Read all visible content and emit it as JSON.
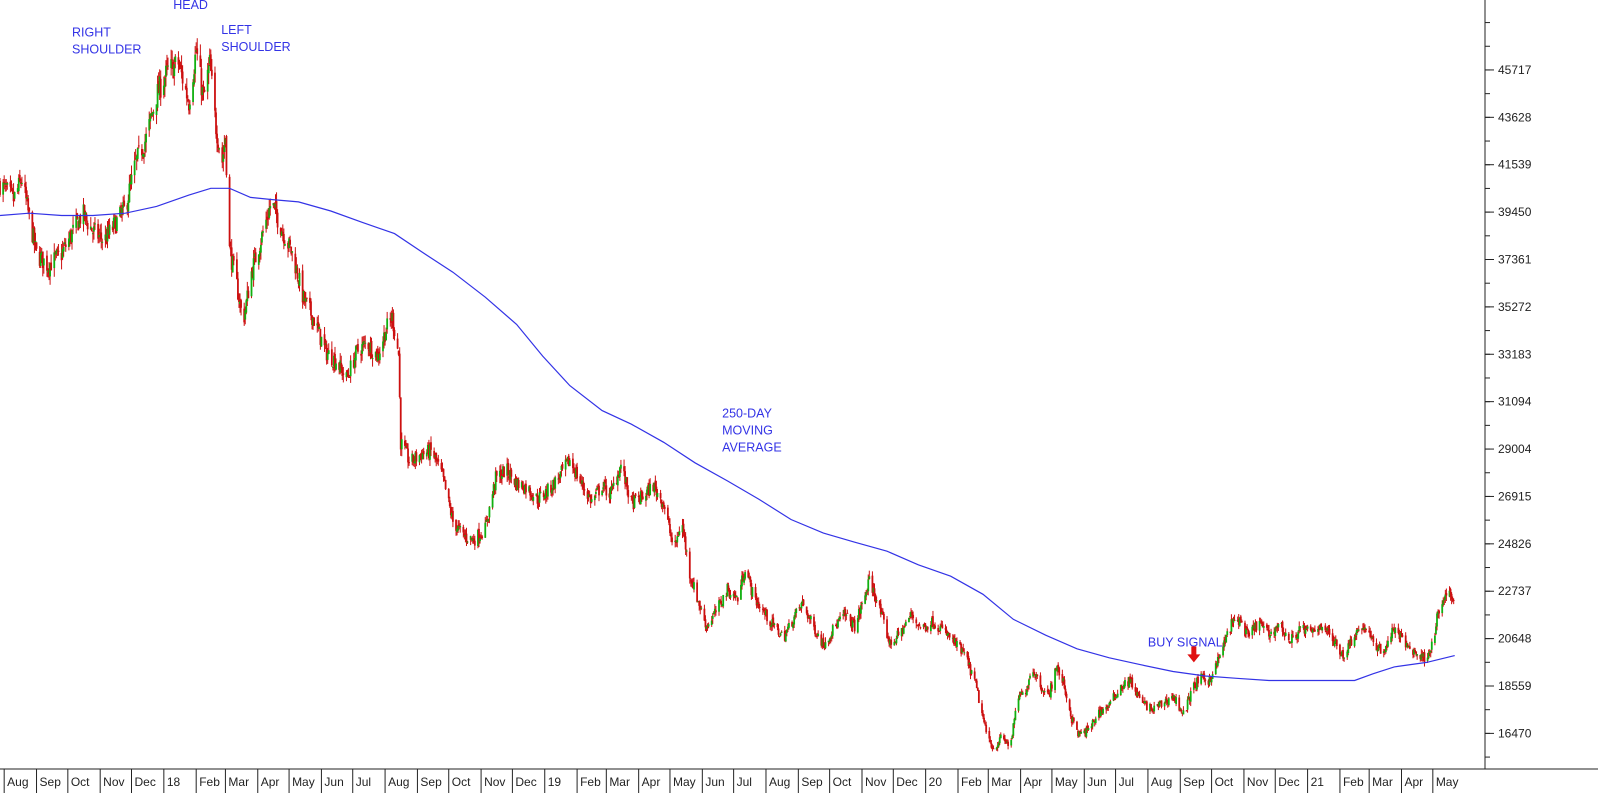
{
  "chart_data": {
    "type": "line",
    "title": "",
    "xlabel": "",
    "ylabel": "",
    "y_ticks": [
      16470,
      18559,
      20648,
      22737,
      24826,
      26915,
      29004,
      31094,
      33183,
      35272,
      37361,
      39450,
      41539,
      43628,
      45717
    ],
    "ylim": [
      14900,
      48800
    ],
    "grid": false,
    "legend": "none",
    "x_ticks": [
      {
        "label": "Aug",
        "date": "2017-08"
      },
      {
        "label": "Sep",
        "date": "2017-09"
      },
      {
        "label": "Oct",
        "date": "2017-10"
      },
      {
        "label": "Nov",
        "date": "2017-11"
      },
      {
        "label": "Dec",
        "date": "2017-12"
      },
      {
        "label": "18",
        "date": "2018-01"
      },
      {
        "label": "Feb",
        "date": "2018-02"
      },
      {
        "label": "Mar",
        "date": "2018-03"
      },
      {
        "label": "Apr",
        "date": "2018-04"
      },
      {
        "label": "May",
        "date": "2018-05"
      },
      {
        "label": "Jun",
        "date": "2018-06"
      },
      {
        "label": "Jul",
        "date": "2018-07"
      },
      {
        "label": "Aug",
        "date": "2018-08"
      },
      {
        "label": "Sep",
        "date": "2018-09"
      },
      {
        "label": "Oct",
        "date": "2018-10"
      },
      {
        "label": "Nov",
        "date": "2018-11"
      },
      {
        "label": "Dec",
        "date": "2018-12"
      },
      {
        "label": "19",
        "date": "2019-01"
      },
      {
        "label": "Feb",
        "date": "2019-02"
      },
      {
        "label": "Mar",
        "date": "2019-03"
      },
      {
        "label": "Apr",
        "date": "2019-04"
      },
      {
        "label": "May",
        "date": "2019-05"
      },
      {
        "label": "Jun",
        "date": "2019-06"
      },
      {
        "label": "Jul",
        "date": "2019-07"
      },
      {
        "label": "Aug",
        "date": "2019-08"
      },
      {
        "label": "Sep",
        "date": "2019-09"
      },
      {
        "label": "Oct",
        "date": "2019-10"
      },
      {
        "label": "Nov",
        "date": "2019-11"
      },
      {
        "label": "Dec",
        "date": "2019-12"
      },
      {
        "label": "20",
        "date": "2020-01"
      },
      {
        "label": "Feb",
        "date": "2020-02"
      },
      {
        "label": "Mar",
        "date": "2020-03"
      },
      {
        "label": "Apr",
        "date": "2020-04"
      },
      {
        "label": "May",
        "date": "2020-05"
      },
      {
        "label": "Jun",
        "date": "2020-06"
      },
      {
        "label": "Jul",
        "date": "2020-07"
      },
      {
        "label": "Aug",
        "date": "2020-08"
      },
      {
        "label": "Sep",
        "date": "2020-09"
      },
      {
        "label": "Oct",
        "date": "2020-10"
      },
      {
        "label": "Nov",
        "date": "2020-11"
      },
      {
        "label": "Dec",
        "date": "2020-12"
      },
      {
        "label": "21",
        "date": "2021-01"
      },
      {
        "label": "Feb",
        "date": "2021-02"
      },
      {
        "label": "Mar",
        "date": "2021-03"
      },
      {
        "label": "Apr",
        "date": "2021-04"
      },
      {
        "label": "May",
        "date": "2021-05"
      }
    ],
    "xlim": [
      "2017-07-28",
      "2021-06-20"
    ],
    "price_path": [
      [
        "2017-07-28",
        40700
      ],
      [
        "2017-08-10",
        40000
      ],
      [
        "2017-08-18",
        40900
      ],
      [
        "2017-08-25",
        39200
      ],
      [
        "2017-09-01",
        37600
      ],
      [
        "2017-09-12",
        37100
      ],
      [
        "2017-09-25",
        37600
      ],
      [
        "2017-10-05",
        38500
      ],
      [
        "2017-10-15",
        39400
      ],
      [
        "2017-10-25",
        38600
      ],
      [
        "2017-11-05",
        38200
      ],
      [
        "2017-11-15",
        38900
      ],
      [
        "2017-11-25",
        39600
      ],
      [
        "2017-12-05",
        41600
      ],
      [
        "2017-12-15",
        42700
      ],
      [
        "2017-12-25",
        44600
      ],
      [
        "2018-01-05",
        45700
      ],
      [
        "2018-01-15",
        46000
      ],
      [
        "2018-01-25",
        44300
      ],
      [
        "2018-02-01",
        46600
      ],
      [
        "2018-02-08",
        44400
      ],
      [
        "2018-02-14",
        46000
      ],
      [
        "2018-02-20",
        43200
      ],
      [
        "2018-02-26",
        41700
      ],
      [
        "2018-03-01",
        42800
      ],
      [
        "2018-03-05",
        37800
      ],
      [
        "2018-03-12",
        36200
      ],
      [
        "2018-03-18",
        34600
      ],
      [
        "2018-03-26",
        36800
      ],
      [
        "2018-04-05",
        38400
      ],
      [
        "2018-04-14",
        39900
      ],
      [
        "2018-04-25",
        38600
      ],
      [
        "2018-05-05",
        37500
      ],
      [
        "2018-05-15",
        35600
      ],
      [
        "2018-05-25",
        34700
      ],
      [
        "2018-06-05",
        33300
      ],
      [
        "2018-06-15",
        32900
      ],
      [
        "2018-06-25",
        32100
      ],
      [
        "2018-07-05",
        33300
      ],
      [
        "2018-07-15",
        33700
      ],
      [
        "2018-07-25",
        33100
      ],
      [
        "2018-08-02",
        34300
      ],
      [
        "2018-08-08",
        34800
      ],
      [
        "2018-08-14",
        33200
      ],
      [
        "2018-08-16",
        29300
      ],
      [
        "2018-08-25",
        28400
      ],
      [
        "2018-09-05",
        28800
      ],
      [
        "2018-09-15",
        28900
      ],
      [
        "2018-09-25",
        27800
      ],
      [
        "2018-10-05",
        25800
      ],
      [
        "2018-10-15",
        25200
      ],
      [
        "2018-10-25",
        25000
      ],
      [
        "2018-11-05",
        25500
      ],
      [
        "2018-11-15",
        27700
      ],
      [
        "2018-11-25",
        28100
      ],
      [
        "2018-12-05",
        27500
      ],
      [
        "2018-12-15",
        27300
      ],
      [
        "2018-12-25",
        26800
      ],
      [
        "2019-01-05",
        27200
      ],
      [
        "2019-01-15",
        27800
      ],
      [
        "2019-01-25",
        28500
      ],
      [
        "2019-02-05",
        27500
      ],
      [
        "2019-02-15",
        26700
      ],
      [
        "2019-02-25",
        27400
      ],
      [
        "2019-03-05",
        27000
      ],
      [
        "2019-03-15",
        28300
      ],
      [
        "2019-03-25",
        26600
      ],
      [
        "2019-04-05",
        26900
      ],
      [
        "2019-04-15",
        27400
      ],
      [
        "2019-04-25",
        26600
      ],
      [
        "2019-05-05",
        24500
      ],
      [
        "2019-05-12",
        25900
      ],
      [
        "2019-05-20",
        23500
      ],
      [
        "2019-05-28",
        22300
      ],
      [
        "2019-06-05",
        21200
      ],
      [
        "2019-06-15",
        21900
      ],
      [
        "2019-06-25",
        22800
      ],
      [
        "2019-07-05",
        22400
      ],
      [
        "2019-07-12",
        23800
      ],
      [
        "2019-07-20",
        22500
      ],
      [
        "2019-07-30",
        21800
      ],
      [
        "2019-08-08",
        21200
      ],
      [
        "2019-08-18",
        20700
      ],
      [
        "2019-08-28",
        21600
      ],
      [
        "2019-09-05",
        22200
      ],
      [
        "2019-09-14",
        21300
      ],
      [
        "2019-09-25",
        20400
      ],
      [
        "2019-10-05",
        21100
      ],
      [
        "2019-10-15",
        21700
      ],
      [
        "2019-10-25",
        21200
      ],
      [
        "2019-11-01",
        22100
      ],
      [
        "2019-11-08",
        23200
      ],
      [
        "2019-11-15",
        22400
      ],
      [
        "2019-11-20",
        21600
      ],
      [
        "2019-11-28",
        20400
      ],
      [
        "2019-12-08",
        20900
      ],
      [
        "2019-12-18",
        21700
      ],
      [
        "2019-12-28",
        21100
      ],
      [
        "2020-01-08",
        21400
      ],
      [
        "2020-01-18",
        21000
      ],
      [
        "2020-01-28",
        20500
      ],
      [
        "2020-02-08",
        19900
      ],
      [
        "2020-02-18",
        18600
      ],
      [
        "2020-02-28",
        16500
      ],
      [
        "2020-03-06",
        15800
      ],
      [
        "2020-03-14",
        16300
      ],
      [
        "2020-03-22",
        15900
      ],
      [
        "2020-03-30",
        18100
      ],
      [
        "2020-04-05",
        18200
      ],
      [
        "2020-04-12",
        19400
      ],
      [
        "2020-04-20",
        18600
      ],
      [
        "2020-04-28",
        18100
      ],
      [
        "2020-05-05",
        19400
      ],
      [
        "2020-05-12",
        18700
      ],
      [
        "2020-05-20",
        17100
      ],
      [
        "2020-05-27",
        16400
      ],
      [
        "2020-06-05",
        16600
      ],
      [
        "2020-06-15",
        17400
      ],
      [
        "2020-06-25",
        17700
      ],
      [
        "2020-07-05",
        18500
      ],
      [
        "2020-07-15",
        18800
      ],
      [
        "2020-07-25",
        17900
      ],
      [
        "2020-08-05",
        17500
      ],
      [
        "2020-08-15",
        17800
      ],
      [
        "2020-08-25",
        18100
      ],
      [
        "2020-09-05",
        17300
      ],
      [
        "2020-09-12",
        18400
      ],
      [
        "2020-09-20",
        18900
      ],
      [
        "2020-09-28",
        18800
      ],
      [
        "2020-10-05",
        19400
      ],
      [
        "2020-10-12",
        20300
      ],
      [
        "2020-10-20",
        21300
      ],
      [
        "2020-10-28",
        21500
      ],
      [
        "2020-11-05",
        20700
      ],
      [
        "2020-11-15",
        21400
      ],
      [
        "2020-11-25",
        20800
      ],
      [
        "2020-12-05",
        21300
      ],
      [
        "2020-12-15",
        20500
      ],
      [
        "2020-12-25",
        21100
      ],
      [
        "2021-01-05",
        20900
      ],
      [
        "2021-01-15",
        21300
      ],
      [
        "2021-01-25",
        20600
      ],
      [
        "2021-02-05",
        19900
      ],
      [
        "2021-02-15",
        20900
      ],
      [
        "2021-02-25",
        21200
      ],
      [
        "2021-03-05",
        20400
      ],
      [
        "2021-03-15",
        20100
      ],
      [
        "2021-03-25",
        21100
      ],
      [
        "2021-04-05",
        20400
      ],
      [
        "2021-04-15",
        20000
      ],
      [
        "2021-04-22",
        19800
      ],
      [
        "2021-04-30",
        20300
      ],
      [
        "2021-05-05",
        21500
      ],
      [
        "2021-05-10",
        22200
      ],
      [
        "2021-05-15",
        22600
      ],
      [
        "2021-05-22",
        22400
      ]
    ],
    "series": [
      {
        "name": "250-DAY MOVING AVERAGE",
        "color": "#3333e6",
        "points": [
          [
            "2017-07-28",
            39300
          ],
          [
            "2017-08-25",
            39400
          ],
          [
            "2017-09-25",
            39300
          ],
          [
            "2017-10-25",
            39300
          ],
          [
            "2017-11-25",
            39400
          ],
          [
            "2017-12-25",
            39700
          ],
          [
            "2018-01-25",
            40200
          ],
          [
            "2018-02-15",
            40500
          ],
          [
            "2018-03-05",
            40500
          ],
          [
            "2018-03-25",
            40100
          ],
          [
            "2018-04-15",
            40000
          ],
          [
            "2018-05-10",
            39900
          ],
          [
            "2018-06-10",
            39500
          ],
          [
            "2018-07-10",
            39000
          ],
          [
            "2018-08-10",
            38500
          ],
          [
            "2018-09-05",
            37700
          ],
          [
            "2018-10-05",
            36800
          ],
          [
            "2018-11-05",
            35700
          ],
          [
            "2018-12-05",
            34500
          ],
          [
            "2018-12-30",
            33100
          ],
          [
            "2019-01-25",
            31800
          ],
          [
            "2019-02-25",
            30700
          ],
          [
            "2019-03-25",
            30100
          ],
          [
            "2019-04-25",
            29300
          ],
          [
            "2019-05-25",
            28400
          ],
          [
            "2019-06-25",
            27600
          ],
          [
            "2019-07-25",
            26800
          ],
          [
            "2019-08-25",
            25900
          ],
          [
            "2019-09-25",
            25300
          ],
          [
            "2019-10-25",
            24900
          ],
          [
            "2019-11-25",
            24500
          ],
          [
            "2019-12-25",
            23900
          ],
          [
            "2020-01-25",
            23400
          ],
          [
            "2020-02-25",
            22600
          ],
          [
            "2020-03-25",
            21500
          ],
          [
            "2020-04-25",
            20800
          ],
          [
            "2020-05-25",
            20200
          ],
          [
            "2020-06-25",
            19800
          ],
          [
            "2020-07-25",
            19500
          ],
          [
            "2020-08-25",
            19200
          ],
          [
            "2020-09-25",
            19000
          ],
          [
            "2020-10-25",
            18900
          ],
          [
            "2020-11-25",
            18800
          ],
          [
            "2020-12-25",
            18800
          ],
          [
            "2021-01-25",
            18800
          ],
          [
            "2021-02-15",
            18800
          ],
          [
            "2021-03-05",
            19100
          ],
          [
            "2021-03-25",
            19400
          ],
          [
            "2021-04-25",
            19600
          ],
          [
            "2021-05-22",
            19900
          ]
        ]
      }
    ],
    "annotations": [
      {
        "id": "head",
        "text": [
          "HEAD"
        ],
        "date": "2018-01-10",
        "value": 48400,
        "anchor": "start"
      },
      {
        "id": "right-shoulder",
        "text": [
          "RIGHT",
          "SHOULDER"
        ],
        "date": "2017-10-05",
        "value": 47200,
        "anchor": "start"
      },
      {
        "id": "left-shoulder",
        "text": [
          "LEFT",
          "SHOULDER"
        ],
        "date": "2018-02-25",
        "value": 47300,
        "anchor": "start"
      },
      {
        "id": "moving-average",
        "text": [
          "250-DAY",
          "MOVING",
          "AVERAGE"
        ],
        "date": "2019-06-20",
        "value": 30400,
        "anchor": "start"
      },
      {
        "id": "buy-signal",
        "text": [
          "BUY SIGNAL"
        ],
        "date": "2020-08-01",
        "value": 20300,
        "anchor": "start"
      }
    ],
    "signal_arrow": {
      "date": "2020-09-14",
      "value": 19600,
      "color": "#e01010"
    },
    "colors": {
      "up": "#10b010",
      "down": "#cc1010",
      "axis": "#222222",
      "label": "#3333e6",
      "tick_text": "#222222"
    }
  }
}
